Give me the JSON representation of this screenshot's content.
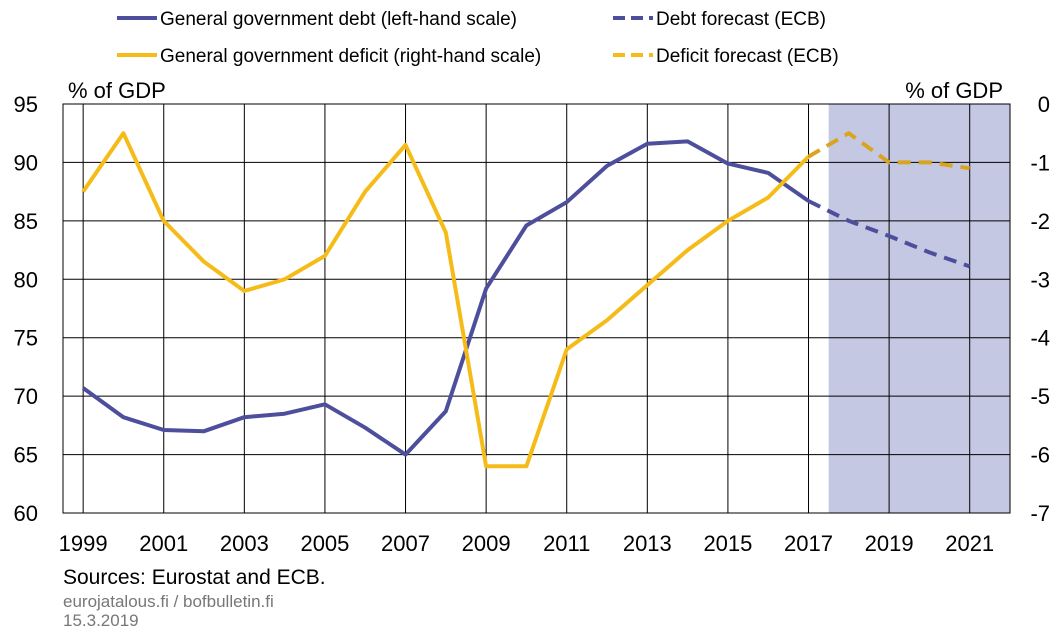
{
  "chart_data": {
    "type": "line",
    "left_axis": {
      "unit_label": "% of GDP",
      "ylim": [
        60,
        95
      ],
      "ticks": [
        "95",
        "90",
        "85",
        "80",
        "75",
        "70",
        "65",
        "60"
      ]
    },
    "right_axis": {
      "unit_label": "% of GDP",
      "ylim": [
        -7,
        0
      ],
      "ticks": [
        "0",
        "-1",
        "-2",
        "-3",
        "-4",
        "-5",
        "-6",
        "-7"
      ]
    },
    "x_range": [
      1998.5,
      2022
    ],
    "x_ticks": [
      "1999",
      "2001",
      "2003",
      "2005",
      "2007",
      "2009",
      "2011",
      "2013",
      "2015",
      "2017",
      "2019",
      "2021"
    ],
    "forecast_shading": {
      "from": 2017.5,
      "to": 2022,
      "color": "#c5c8e2"
    },
    "grid": true,
    "series": [
      {
        "name": "General government debt (left-hand scale)",
        "axis": "left",
        "style": "solid",
        "color": "#4d4f9c",
        "x": [
          1999,
          2000,
          2001,
          2002,
          2003,
          2004,
          2005,
          2006,
          2007,
          2008,
          2009,
          2010,
          2011,
          2012,
          2013,
          2014,
          2015,
          2016,
          2017
        ],
        "y": [
          70.7,
          68.2,
          67.1,
          67.0,
          68.2,
          68.5,
          69.3,
          67.3,
          65.0,
          68.7,
          79.2,
          84.6,
          86.6,
          89.7,
          91.6,
          91.8,
          89.9,
          89.1,
          86.7
        ]
      },
      {
        "name": "Debt forecast (ECB)",
        "axis": "left",
        "style": "dashed",
        "color": "#4d4f9c",
        "x": [
          2017,
          2018,
          2019,
          2020,
          2021
        ],
        "y": [
          86.7,
          85.0,
          83.7,
          82.3,
          81.1
        ]
      },
      {
        "name": "General government deficit (right-hand scale)",
        "axis": "right",
        "style": "solid",
        "color": "#f5bc19",
        "x": [
          1999,
          2000,
          2001,
          2002,
          2003,
          2004,
          2005,
          2006,
          2007,
          2008,
          2009,
          2010,
          2011,
          2012,
          2013,
          2014,
          2015,
          2016,
          2017
        ],
        "y": [
          -1.5,
          -0.5,
          -2.0,
          -2.7,
          -3.2,
          -3.0,
          -2.6,
          -1.5,
          -0.7,
          -2.2,
          -6.2,
          -6.2,
          -4.2,
          -3.7,
          -3.1,
          -2.5,
          -2.0,
          -1.6,
          -0.9
        ]
      },
      {
        "name": "Deficit forecast (ECB)",
        "axis": "right",
        "style": "dashed",
        "color": "#d9a521",
        "x": [
          2017,
          2018,
          2019,
          2020,
          2021
        ],
        "y": [
          -0.9,
          -0.5,
          -1.0,
          -1.0,
          -1.1
        ]
      }
    ],
    "legend": {
      "placement": "top",
      "items": [
        {
          "label": "General government debt (left-hand scale)",
          "style": "solid",
          "color": "#4d4f9c"
        },
        {
          "label": "Debt forecast (ECB)",
          "style": "dashed",
          "color": "#4d4f9c"
        },
        {
          "label": "General government deficit (right-hand scale)",
          "style": "solid",
          "color": "#f5bc19"
        },
        {
          "label": "Deficit forecast (ECB)",
          "style": "dashed",
          "color": "#f5bc19"
        }
      ]
    }
  },
  "footer": {
    "sources": "Sources: Eurostat and ECB.",
    "site": "eurojatalous.fi / bofbulletin.fi",
    "date": "15.3.2019"
  }
}
